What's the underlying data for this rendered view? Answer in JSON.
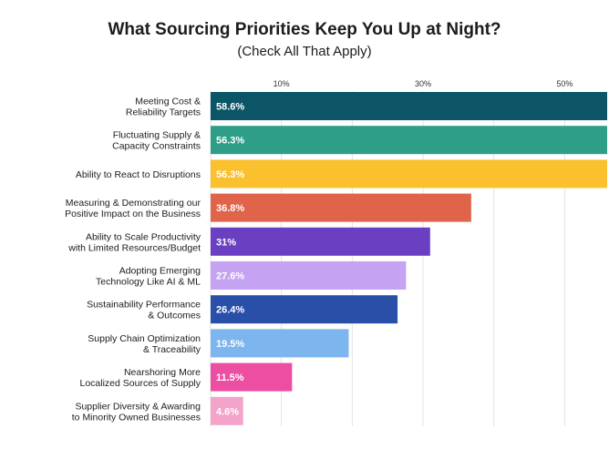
{
  "chart_data": {
    "type": "bar",
    "orientation": "horizontal",
    "title": "What Sourcing Priorities Keep You Up at Night?",
    "subtitle": "(Check All That Apply)",
    "xlabel": "",
    "ylabel": "",
    "xlim": [
      0,
      56
    ],
    "x_ticks": [
      {
        "value": 10,
        "label": "10%"
      },
      {
        "value": 30,
        "label": "30%"
      },
      {
        "value": 50,
        "label": "50%"
      }
    ],
    "grid": true,
    "categories": [
      [
        "Meeting Cost &",
        "Reliability Targets"
      ],
      [
        "Fluctuating Supply &",
        "Capacity Constraints"
      ],
      [
        "Ability to React to Disruptions"
      ],
      [
        "Measuring & Demonstrating our",
        "Positive Impact on the Business"
      ],
      [
        "Ability to Scale Productivity",
        "with Limited Resources/Budget"
      ],
      [
        "Adopting Emerging",
        "Technology Like AI & ML"
      ],
      [
        "Sustainability Performance",
        "& Outcomes"
      ],
      [
        "Supply Chain Optimization",
        "& Traceability"
      ],
      [
        "Nearshoring More",
        "Localized Sources of Supply"
      ],
      [
        "Supplier Diversity & Awarding",
        "to Minority Owned Businesses"
      ]
    ],
    "values": [
      58.6,
      56.3,
      56.3,
      36.8,
      31,
      27.6,
      26.4,
      19.5,
      11.5,
      4.6
    ],
    "value_labels": [
      "58.6%",
      "56.3%",
      "56.3%",
      "36.8%",
      "31%",
      "27.6%",
      "26.4%",
      "19.5%",
      "11.5%",
      "4.6%"
    ],
    "colors": [
      "#0b5566",
      "#2e9e88",
      "#fbc02d",
      "#e0644a",
      "#6a3fc1",
      "#c5a3f2",
      "#2a4fa8",
      "#7db5ee",
      "#ec4ea1",
      "#f4a3cb"
    ]
  }
}
